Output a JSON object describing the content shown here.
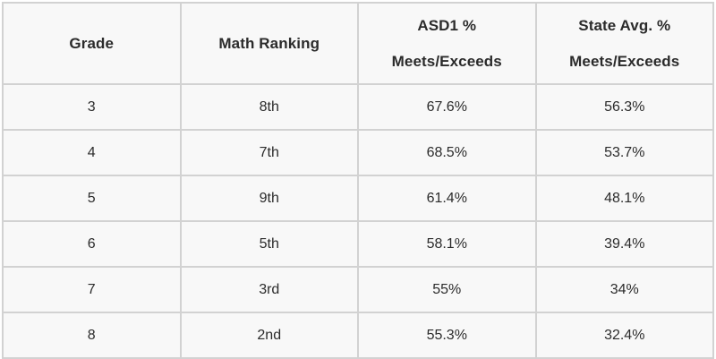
{
  "colors": {
    "page_background": "#ffffff",
    "cell_background": "#f8f8f8",
    "grid_border": "#d2d2d2",
    "header_text": "#1c1c1c",
    "body_text": "#333333"
  },
  "table": {
    "columns": [
      {
        "line1": "Grade"
      },
      {
        "line1": "Math Ranking"
      },
      {
        "line1": "ASD1 %",
        "line2": "Meets/Exceeds"
      },
      {
        "line1": "State Avg. %",
        "line2": "Meets/Exceeds"
      }
    ],
    "rows": [
      [
        "3",
        "8th",
        "67.6%",
        "56.3%"
      ],
      [
        "4",
        "7th",
        "68.5%",
        "53.7%"
      ],
      [
        "5",
        "9th",
        "61.4%",
        "48.1%"
      ],
      [
        "6",
        "5th",
        "58.1%",
        "39.4%"
      ],
      [
        "7",
        "3rd",
        "55%",
        "34%"
      ],
      [
        "8",
        "2nd",
        "55.3%",
        "32.4%"
      ]
    ]
  },
  "chart_data": {
    "type": "table",
    "title": "",
    "columns": [
      "Grade",
      "Math Ranking",
      "ASD1 % Meets/Exceeds",
      "State Avg. % Meets/Exceeds"
    ],
    "rows": [
      [
        "3",
        "8th",
        "67.6%",
        "56.3%"
      ],
      [
        "4",
        "7th",
        "68.5%",
        "53.7%"
      ],
      [
        "5",
        "9th",
        "61.4%",
        "48.1%"
      ],
      [
        "6",
        "5th",
        "58.1%",
        "39.4%"
      ],
      [
        "7",
        "3rd",
        "55%",
        "34%"
      ],
      [
        "8",
        "2nd",
        "55.3%",
        "32.4%"
      ]
    ],
    "series": [
      {
        "name": "ASD1 % Meets/Exceeds",
        "values": [
          67.6,
          68.5,
          61.4,
          58.1,
          55,
          55.3
        ]
      },
      {
        "name": "State Avg. % Meets/Exceeds",
        "values": [
          56.3,
          53.7,
          48.1,
          39.4,
          34,
          32.4
        ]
      },
      {
        "name": "Math Ranking",
        "values": [
          8,
          7,
          9,
          5,
          3,
          2
        ]
      }
    ],
    "categories": [
      "3",
      "4",
      "5",
      "6",
      "7",
      "8"
    ],
    "xlabel": "Grade",
    "ylabel": "% Meets/Exceeds"
  }
}
